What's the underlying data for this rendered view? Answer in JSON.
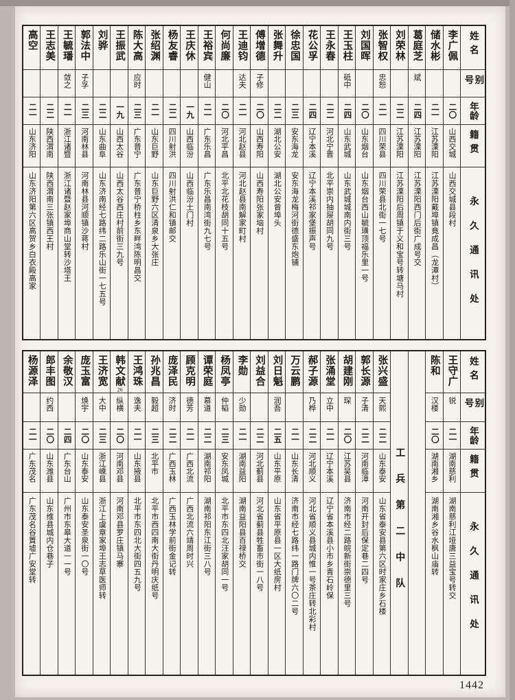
{
  "page_number": "1442",
  "unit_label": "工兵第二中队",
  "headers": {
    "name": "姓名",
    "alias": "别号",
    "age": "年龄",
    "origin": "籍贯",
    "address": "永久通讯处"
  },
  "table_top": {
    "columns": [
      {
        "type": "person",
        "name": "李广佩",
        "alias": "",
        "age": "二〇",
        "origin": "山西交城",
        "address": "山西交城县段村"
      },
      {
        "type": "person",
        "name": "储水彬",
        "alias": "",
        "age": "二一",
        "origin": "江苏溧阳",
        "address": "江苏溧阳戴埠镇竟成昌（龙潭村）"
      },
      {
        "type": "person",
        "name": "葛庭芝",
        "alias": "斌",
        "age": "二四",
        "origin": "江苏溧阳",
        "address": "江苏溧阳西门后街广成号交"
      },
      {
        "type": "person",
        "name": "刘荣林",
        "alias": "",
        "age": "二二",
        "origin": "江苏溧阳",
        "address": "江苏溧阳后周镇于义和宝号转塘马村"
      },
      {
        "type": "person",
        "name": "张智权",
        "alias": "忠恕",
        "age": "二一",
        "origin": "四川荣县",
        "address": "四川荣县北街一七号"
      },
      {
        "type": "person",
        "name": "刘国晖",
        "alias": "",
        "age": "二〇",
        "origin": "山东烟台",
        "address": "山东烟台西山毓璜顶福乐里一号"
      },
      {
        "type": "person",
        "name": "王玉柱",
        "alias": "砥中",
        "age": "二四",
        "origin": "山东武城",
        "address": "山东武城城南内街三号"
      },
      {
        "type": "person",
        "name": "王永春",
        "alias": "",
        "age": "二二",
        "origin": "河北宁晋",
        "address": "北平崇内抽屉胡同九号"
      },
      {
        "type": "person",
        "name": "花公孚",
        "alias": "",
        "age": "二四",
        "origin": "辽宁本溪",
        "address": "辽宁本溪祁家堡振声号"
      },
      {
        "type": "person",
        "name": "徐忠国",
        "alias": "",
        "age": "二三",
        "origin": "安东海龙",
        "address": "安东海龙梅河街德盛东炮铺"
      },
      {
        "type": "person",
        "name": "张舞升",
        "alias": "",
        "age": "二二",
        "origin": "湖北公安",
        "address": "湖北公安曾埠头"
      },
      {
        "type": "person",
        "name": "傅增德",
        "alias": "子修",
        "age": "二〇",
        "origin": "山西寿阳",
        "address": "山西寿阳张家垴村"
      },
      {
        "type": "person",
        "name": "王迪钧",
        "alias": "达夫",
        "age": "二一",
        "origin": "河北赵县",
        "address": "河北赵县南解家町村"
      },
      {
        "type": "person",
        "name": "何尚廉",
        "alias": "",
        "age": "二〇",
        "origin": "河北平昌",
        "address": "北平北花枝胡同十五号"
      },
      {
        "type": "person",
        "name": "王裕宾",
        "alias": "健山",
        "age": "二一",
        "origin": "广东乐昌",
        "address": "广东乐昌南湾街九七号"
      },
      {
        "type": "person",
        "name": "王庆休",
        "alias": "",
        "age": "一九",
        "origin": "山西临汾",
        "address": "山西临汾土门村"
      },
      {
        "type": "person",
        "name": "杨友睿",
        "alias": "",
        "age": "二二",
        "origin": "四川射洪",
        "address": "四川射洪仁和镇邮交"
      },
      {
        "type": "person",
        "name": "张绍渊",
        "alias": "",
        "age": "二一",
        "origin": "山东巨野",
        "address": "山东巨野六区清泉乡大张庄"
      },
      {
        "type": "person",
        "name": "陈大高",
        "alias": "应时",
        "age": "二三",
        "origin": "广东普宁",
        "address": "广东普宁桥柱乡东畔湾陈明昌交"
      },
      {
        "type": "person",
        "name": "王振武",
        "alias": "",
        "age": "一九",
        "origin": "山西太谷",
        "address": "山西太谷西庄村前街三九号"
      },
      {
        "type": "person",
        "name": "刘骅",
        "alias": "",
        "age": "二二",
        "origin": "山东曲阜",
        "address": "山东济南经七路纬二路乐山街一七五号"
      },
      {
        "type": "person",
        "name": "郭法中",
        "alias": "子孚",
        "age": "二三",
        "origin": "河南林县",
        "address": "河南林县河顺镇沙蒋村"
      },
      {
        "type": "person",
        "name": "王毓璠",
        "alias": "敛之",
        "age": "二一",
        "origin": "浙江诸暨",
        "address": "浙江诸暨赵家埠商山堂转沙塔王"
      },
      {
        "type": "person",
        "name": "王志美",
        "alias": "",
        "age": "二二",
        "origin": "陕西渭南",
        "address": "陕西渭南三张镇西王村"
      },
      {
        "type": "person",
        "name": "高空",
        "alias": "",
        "age": "二一",
        "origin": "山东济阳",
        "address": "山东济阳第六区高贺乡白衣殿高家"
      }
    ]
  },
  "table_bottom": {
    "columns": [
      {
        "type": "person",
        "name": "王守广",
        "alias": "锐",
        "age": "二一",
        "origin": "湖南慈利",
        "address": "湖南慈利江垭唐三益宝号转交"
      },
      {
        "type": "person",
        "name": "陈和",
        "alias": "汉楼",
        "age": "二〇",
        "origin": "湖南湘乡",
        "address": "湖南湘乡谷水枫山庙转"
      },
      {
        "type": "spacer"
      },
      {
        "type": "unit"
      },
      {
        "type": "person",
        "name": "张兴盛",
        "alias": "天熙",
        "age": "二二",
        "origin": "山东泰安",
        "address": "山东省泰安县第六区时家庄乡石楼"
      },
      {
        "type": "person",
        "name": "郭长源",
        "alias": "子清",
        "age": "二二",
        "origin": "河南临漳",
        "address": "河南开封后保定巷二四号"
      },
      {
        "type": "person",
        "name": "胡建刚",
        "alias": "琛",
        "age": "二〇",
        "origin": "江苏吴县",
        "address": "济南市经二路皖新街崇德里三号"
      },
      {
        "type": "person",
        "name": "张涌堂",
        "alias": "立中",
        "age": "二一",
        "origin": "辽宁本溪",
        "address": "辽宁省本溪县小市乡青石岭保"
      },
      {
        "type": "person",
        "name": "郝子源",
        "alias": "乃桦",
        "age": "二二",
        "origin": "河北顺义",
        "address": "河北省顺义县城内惟一号茶庄转北彩村"
      },
      {
        "type": "person",
        "name": "万云鹏",
        "alias": "",
        "age": "二一",
        "origin": "山东长清",
        "address": "济南市经七路纬一路门牌六〇二号"
      },
      {
        "type": "person",
        "name": "刘日魁",
        "alias": "润吾",
        "age": "二五",
        "origin": "山东平原",
        "address": "山东省平原县一区大纸房村"
      },
      {
        "type": "person",
        "name": "刘益合",
        "alias": "",
        "age": "二二",
        "origin": "河北蓟县",
        "address": "河北省蓟县牲畜市街一八号"
      },
      {
        "type": "person",
        "name": "李勋",
        "alias": "少勋",
        "age": "二一",
        "origin": "湖南益阳",
        "address": "湖南益阳县百禄桥交"
      },
      {
        "type": "person",
        "name": "杨凤亭",
        "alias": "仲韬",
        "age": "二三",
        "origin": "安东凤城",
        "address": "北平市东四北汪家胡同一号"
      },
      {
        "type": "person",
        "name": "谭荣庭",
        "alias": "慕道",
        "age": "二二",
        "origin": "湖南祁阳",
        "address": "湖南祁阳东江街三八号"
      },
      {
        "type": "person",
        "name": "顾克明",
        "alias": "德芳",
        "age": "二一",
        "origin": "广西北流",
        "address": "广西北流六靖周时兴"
      },
      {
        "type": "person",
        "name": "庞泽民",
        "alias": "济时",
        "age": "二二",
        "origin": "广西玉林",
        "address": "广西玉林学前街金记转"
      },
      {
        "type": "person",
        "name": "孙兆昌",
        "alias": "毅超",
        "age": "二三",
        "origin": "北平市",
        "address": "北平市西四南大街丹明庆纸号"
      },
      {
        "type": "person",
        "name": "王鸿珠",
        "alias": "逸夫",
        "age": "二一",
        "origin": "山东掖县",
        "address": "北平市东四北大街四五九号"
      },
      {
        "type": "person",
        "name": "韩文献",
        "note": "26",
        "alias": "纵横",
        "age": "二〇",
        "origin": "河南邓县",
        "address": "河南邓县罗庄镇马寨"
      },
      {
        "type": "person",
        "name": "王济宽",
        "alias": "大中",
        "age": "二三",
        "origin": "浙江嵊县",
        "address": "浙江上虞章家埠王志草医师转"
      },
      {
        "type": "person",
        "name": "庞玉富",
        "alias": "焕宇",
        "age": "二〇",
        "origin": "山东泰安",
        "address": "山东泰安圣泉街一〇号"
      },
      {
        "type": "person",
        "name": "余敬汉",
        "alias": "",
        "age": "二四",
        "origin": "广东台山",
        "address": "广州市东皋大道一一号"
      },
      {
        "type": "person",
        "name": "郎丰图",
        "alias": "约西",
        "age": "二〇",
        "origin": "山东潍县",
        "address": "山东维县城内仓巷子"
      },
      {
        "type": "person",
        "name": "杨源泽",
        "alias": "",
        "age": "二一",
        "origin": "广东茂名",
        "address": "广东茂名谷篢墟广安堂转"
      }
    ]
  }
}
